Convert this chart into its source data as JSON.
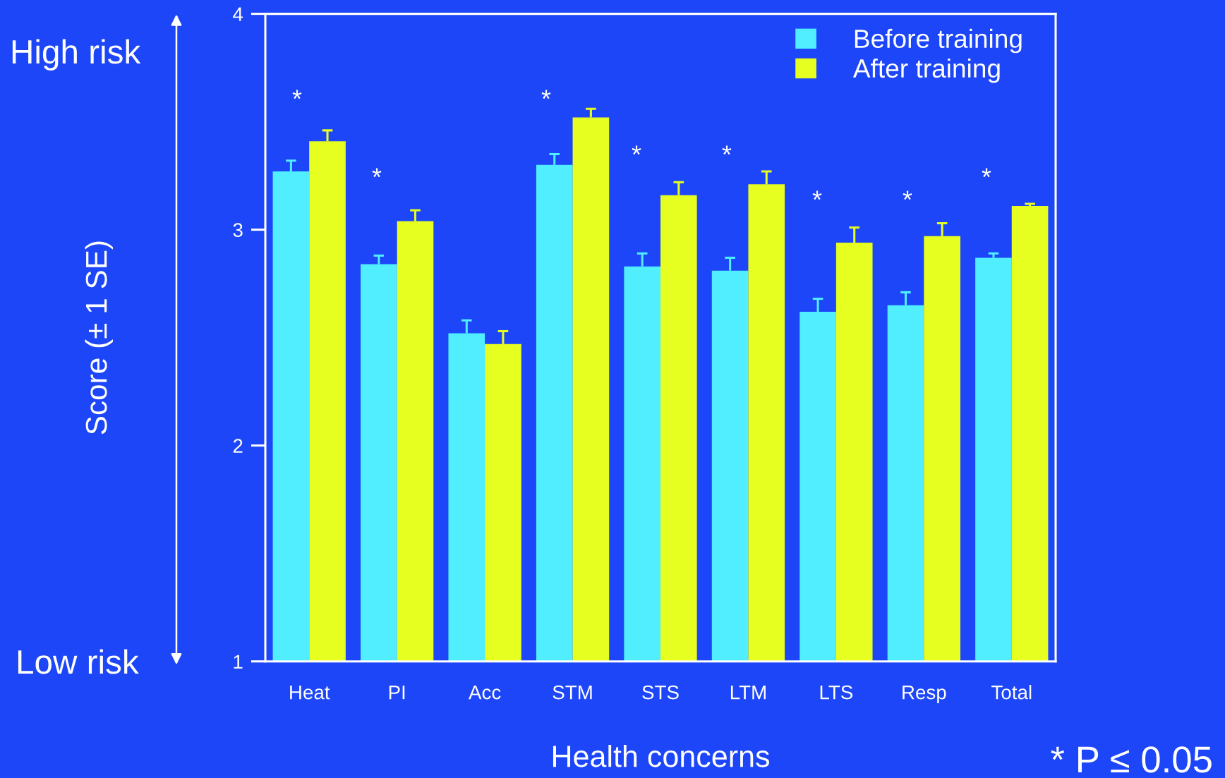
{
  "chart_data": {
    "type": "bar",
    "xlabel": "Health concerns",
    "ylabel": "Score (± 1 SE)",
    "categories": [
      "Heat",
      "PI",
      "Acc",
      "STM",
      "STS",
      "LTM",
      "LTS",
      "Resp",
      "Total"
    ],
    "series": [
      {
        "name": "Before training",
        "color": "#50eeff",
        "values": [
          3.27,
          2.84,
          2.52,
          3.3,
          2.83,
          2.81,
          2.62,
          2.65,
          2.87
        ],
        "errors": [
          [
            3.27,
            3.32
          ],
          [
            2.84,
            2.88
          ],
          [
            2.52,
            2.58
          ],
          [
            3.3,
            3.35
          ],
          [
            2.83,
            2.89
          ],
          [
            2.81,
            2.87
          ],
          [
            2.62,
            2.68
          ],
          [
            2.65,
            2.71
          ],
          [
            2.87,
            2.89
          ]
        ]
      },
      {
        "name": "After training",
        "color": "#e6ff20",
        "values": [
          3.41,
          3.04,
          2.47,
          3.52,
          3.16,
          3.21,
          2.94,
          2.97,
          3.11
        ],
        "errors": [
          [
            3.41,
            3.46
          ],
          [
            3.04,
            3.09
          ],
          [
            2.47,
            2.53
          ],
          [
            3.52,
            3.56
          ],
          [
            3.16,
            3.22
          ],
          [
            3.21,
            3.27
          ],
          [
            2.94,
            3.01
          ],
          [
            2.97,
            3.03
          ],
          [
            3.11,
            3.12
          ]
        ]
      }
    ],
    "ylim": [
      1,
      4
    ],
    "yticks": [
      1,
      2,
      3,
      4
    ],
    "legend": "top right",
    "annotations": [
      "High risk",
      "Low risk",
      "*",
      "*",
      "*",
      "*",
      "*",
      "*",
      "*",
      "*",
      "* P ≤ 0.05"
    ]
  }
}
